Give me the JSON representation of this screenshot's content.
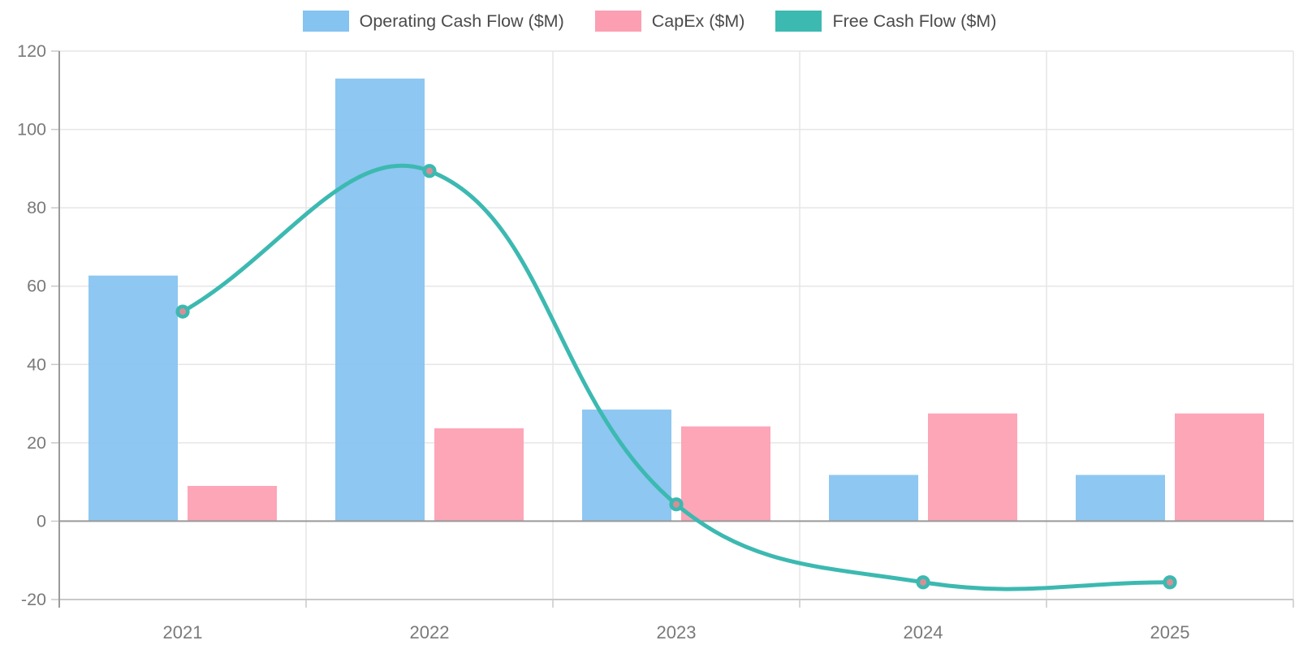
{
  "chart_data": {
    "type": "combo-bar-line",
    "title": "",
    "xlabel": "",
    "ylabel": "",
    "categories": [
      "2021",
      "2022",
      "2023",
      "2024",
      "2025"
    ],
    "series": [
      {
        "key": "operating_cash_flow",
        "name": "Operating Cash Flow ($M)",
        "type": "bar",
        "color": "#85C3F0",
        "values": [
          62.7,
          113.0,
          28.5,
          11.8,
          11.8
        ]
      },
      {
        "key": "capex",
        "name": "CapEx ($M)",
        "type": "bar",
        "color": "#FC9FB2",
        "values": [
          9.0,
          23.7,
          24.2,
          27.5,
          27.5
        ]
      },
      {
        "key": "free_cash_flow",
        "name": "Free Cash Flow ($M)",
        "type": "line",
        "color": "#3CB9B1",
        "point_fill": "#D98E96",
        "values": [
          53.5,
          89.4,
          4.3,
          -15.6,
          -15.6
        ]
      }
    ],
    "ylim": [
      -20,
      120
    ],
    "y_ticks": [
      120,
      100,
      80,
      60,
      40,
      20,
      0,
      -20
    ],
    "grid": true,
    "legend_position": "top",
    "styles": {
      "background": "#FFFFFF",
      "grid_color": "#E6E6E6",
      "zero_line_color": "#9A9A9A",
      "axis_line_color": "#9A9A9A",
      "bottom_line_color": "#C9C9C9",
      "tick_mark_color": "#C9C9C9",
      "tick_label_color": "#7A7A7A",
      "legend_label_color": "#4B4B4B"
    }
  }
}
